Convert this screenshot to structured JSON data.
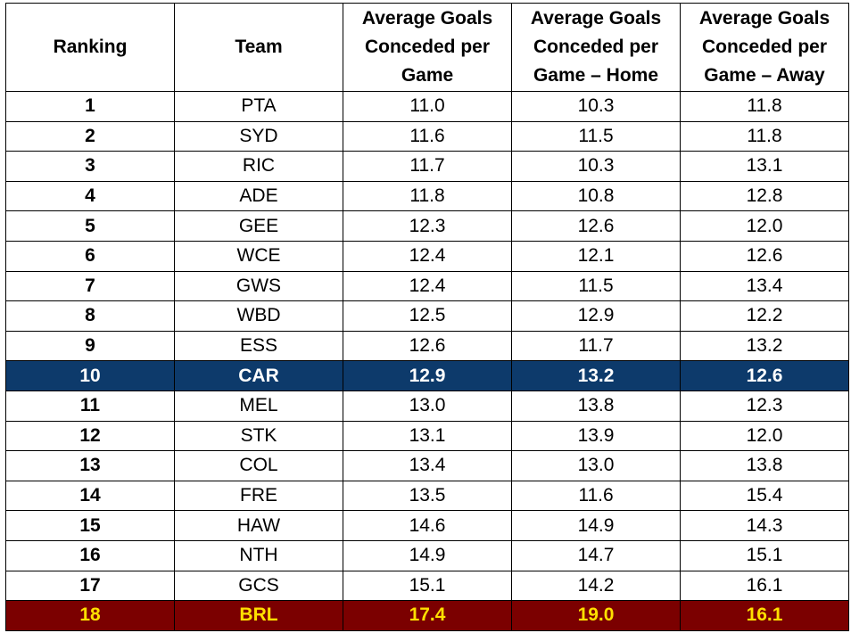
{
  "table": {
    "headers": [
      "Ranking",
      "Team",
      "Average Goals Conceded per Game",
      "Average Goals Conceded per Game – Home",
      "Average Goals Conceded per Game – Away"
    ],
    "highlight_colors": {
      "blue_row_bg": "#0d3a6b",
      "blue_row_text": "#ffffff",
      "red_row_bg": "#7b0000",
      "red_row_text": "#ffe000"
    },
    "rows": [
      {
        "rank": "1",
        "team": "PTA",
        "avg": "11.0",
        "home": "10.3",
        "away": "11.8"
      },
      {
        "rank": "2",
        "team": "SYD",
        "avg": "11.6",
        "home": "11.5",
        "away": "11.8"
      },
      {
        "rank": "3",
        "team": "RIC",
        "avg": "11.7",
        "home": "10.3",
        "away": "13.1"
      },
      {
        "rank": "4",
        "team": "ADE",
        "avg": "11.8",
        "home": "10.8",
        "away": "12.8"
      },
      {
        "rank": "5",
        "team": "GEE",
        "avg": "12.3",
        "home": "12.6",
        "away": "12.0"
      },
      {
        "rank": "6",
        "team": "WCE",
        "avg": "12.4",
        "home": "12.1",
        "away": "12.6"
      },
      {
        "rank": "7",
        "team": "GWS",
        "avg": "12.4",
        "home": "11.5",
        "away": "13.4"
      },
      {
        "rank": "8",
        "team": "WBD",
        "avg": "12.5",
        "home": "12.9",
        "away": "12.2"
      },
      {
        "rank": "9",
        "team": "ESS",
        "avg": "12.6",
        "home": "11.7",
        "away": "13.2"
      },
      {
        "rank": "10",
        "team": "CAR",
        "avg": "12.9",
        "home": "13.2",
        "away": "12.6"
      },
      {
        "rank": "11",
        "team": "MEL",
        "avg": "13.0",
        "home": "13.8",
        "away": "12.3"
      },
      {
        "rank": "12",
        "team": "STK",
        "avg": "13.1",
        "home": "13.9",
        "away": "12.0"
      },
      {
        "rank": "13",
        "team": "COL",
        "avg": "13.4",
        "home": "13.0",
        "away": "13.8"
      },
      {
        "rank": "14",
        "team": "FRE",
        "avg": "13.5",
        "home": "11.6",
        "away": "15.4"
      },
      {
        "rank": "15",
        "team": "HAW",
        "avg": "14.6",
        "home": "14.9",
        "away": "14.3"
      },
      {
        "rank": "16",
        "team": "NTH",
        "avg": "14.9",
        "home": "14.7",
        "away": "15.1"
      },
      {
        "rank": "17",
        "team": "GCS",
        "avg": "15.1",
        "home": "14.2",
        "away": "16.1"
      },
      {
        "rank": "18",
        "team": "BRL",
        "avg": "17.4",
        "home": "19.0",
        "away": "16.1"
      }
    ]
  }
}
